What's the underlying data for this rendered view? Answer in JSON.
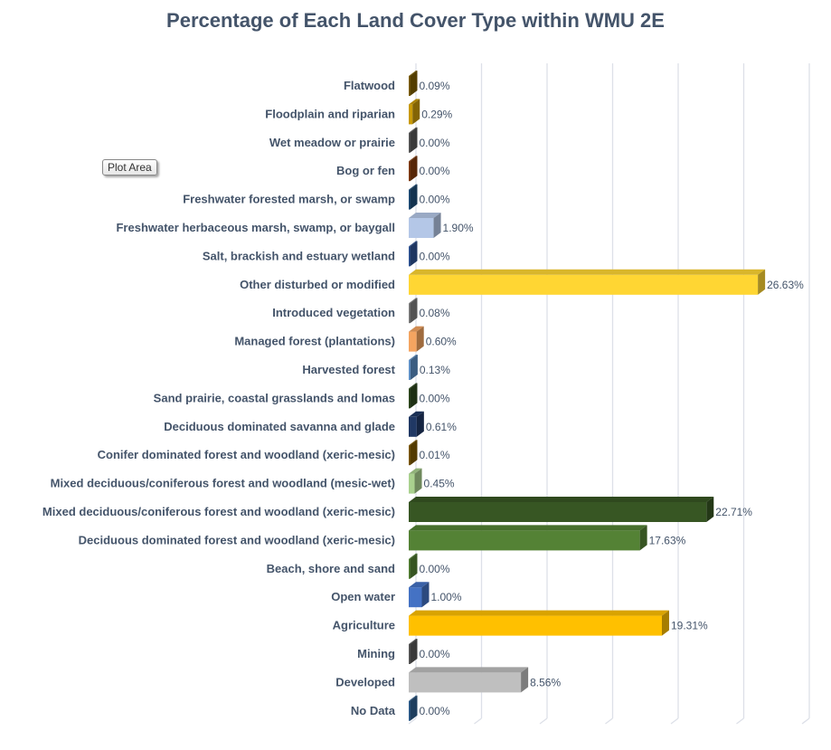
{
  "tooltip": "Plot Area",
  "chart_data": {
    "type": "bar",
    "orientation": "horizontal",
    "style": "3d",
    "title": "Percentage of Each Land Cover Type within WMU 2E",
    "xlim": [
      0,
      30
    ],
    "x_gridline_step": 5,
    "grid": true,
    "x_tick_labels_shown": false,
    "legend": "none",
    "categories": [
      "Flatwood",
      "Floodplain and riparian",
      "Wet meadow or prairie",
      "Bog or fen",
      "Freshwater forested  marsh, or swamp",
      "Freshwater herbaceous marsh, swamp, or baygall",
      "Salt, brackish and estuary wetland",
      "Other disturbed or modified",
      "Introduced vegetation",
      "Managed forest (plantations)",
      "Harvested forest",
      "Sand prairie, coastal grasslands and lomas",
      "Deciduous dominated savanna and glade",
      "Conifer dominated forest and woodland (xeric-mesic)",
      "Mixed deciduous/coniferous forest and woodland (mesic-wet)",
      "Mixed deciduous/coniferous forest and woodland  (xeric-mesic)",
      "Deciduous dominated forest and woodland (xeric-mesic)",
      "Beach, shore and sand",
      "Open water",
      "Agriculture",
      "Mining",
      "Developed",
      "No Data"
    ],
    "values": [
      0.09,
      0.29,
      0.0,
      0.0,
      0.0,
      1.9,
      0.0,
      26.63,
      0.08,
      0.6,
      0.13,
      0.0,
      0.61,
      0.01,
      0.45,
      22.71,
      17.63,
      0.0,
      1.0,
      19.31,
      0.0,
      8.56,
      0.0
    ],
    "data_labels": [
      "0.09%",
      "0.29%",
      "0.00%",
      "0.00%",
      "0.00%",
      "1.90%",
      "0.00%",
      "26.63%",
      "0.08%",
      "0.60%",
      "0.13%",
      "0.00%",
      "0.61%",
      "0.01%",
      "0.45%",
      "22.71%",
      "17.63%",
      "0.00%",
      "1.00%",
      "19.31%",
      "0.00%",
      "8.56%",
      "0.00%"
    ],
    "colors": [
      "#7f6000",
      "#c99a06",
      "#595959",
      "#843c0c",
      "#1f4e79",
      "#b4c7e7",
      "#2f5597",
      "#ffd633",
      "#7f7f7f",
      "#f4a460",
      "#5b8fc7",
      "#2e4a1e",
      "#203864",
      "#7f5a00",
      "#a9d18e",
      "#375623",
      "#548235",
      "#548235",
      "#4472c4",
      "#ffc000",
      "#595959",
      "#bfbfbf",
      "#2e5f8f"
    ]
  }
}
